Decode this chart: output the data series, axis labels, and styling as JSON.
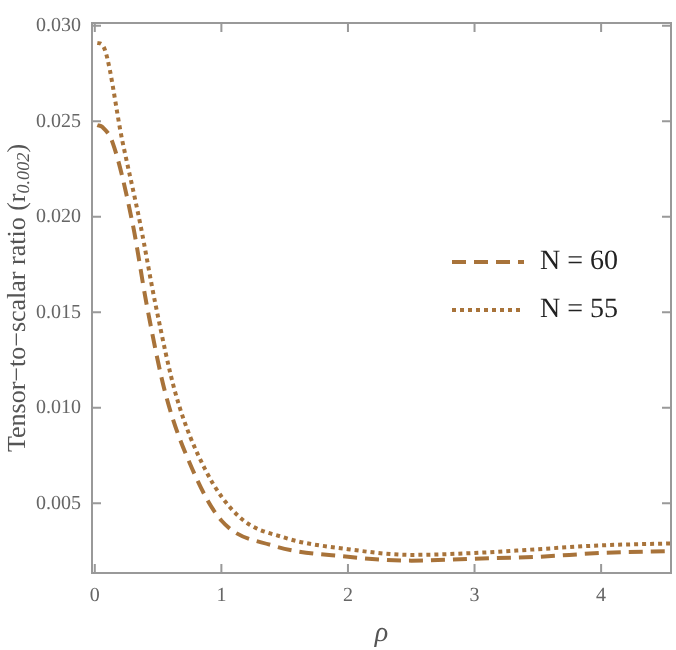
{
  "chart_data": {
    "type": "line",
    "xlabel": "ρ",
    "ylabel": "Tensor−to−scalar ratio (r$_{0.002}$)",
    "xlim": [
      -0.03,
      4.56
    ],
    "ylim": [
      0.0013,
      0.0302
    ],
    "xticks": [
      0,
      1,
      2,
      3,
      4
    ],
    "yticks": [
      {
        "value": 0.005,
        "label": "0.005"
      },
      {
        "value": 0.01,
        "label": "0.010"
      },
      {
        "value": 0.015,
        "label": "0.015"
      },
      {
        "value": 0.02,
        "label": "0.020"
      },
      {
        "value": 0.025,
        "label": "0.025"
      },
      {
        "value": 0.03,
        "label": "0.030"
      }
    ],
    "grid": false,
    "legend": "right",
    "marker": "none",
    "series": [
      {
        "name": "N = 60",
        "color": "#a8733a",
        "line_style": "dashed",
        "x": [
          0.02,
          0.06,
          0.14,
          0.3,
          0.41,
          0.56,
          0.77,
          1.0,
          1.4,
          2.0,
          2.5,
          3.0,
          3.5,
          4.0,
          4.56
        ],
        "values": [
          0.0248,
          0.0247,
          0.0239,
          0.0196,
          0.0154,
          0.0107,
          0.0068,
          0.0041,
          0.0028,
          0.0022,
          0.002,
          0.0021,
          0.0022,
          0.0024,
          0.0025
        ]
      },
      {
        "name": "N = 55",
        "color": "#a8733a",
        "line_style": "dotted",
        "x": [
          0.02,
          0.06,
          0.22,
          0.36,
          0.48,
          0.64,
          0.87,
          1.14,
          1.5,
          2.0,
          2.5,
          3.0,
          3.5,
          4.0,
          4.56
        ],
        "values": [
          0.0291,
          0.029,
          0.0239,
          0.0196,
          0.0154,
          0.0107,
          0.0068,
          0.0043,
          0.0032,
          0.0026,
          0.0023,
          0.0024,
          0.0026,
          0.0028,
          0.0029
        ]
      }
    ]
  }
}
